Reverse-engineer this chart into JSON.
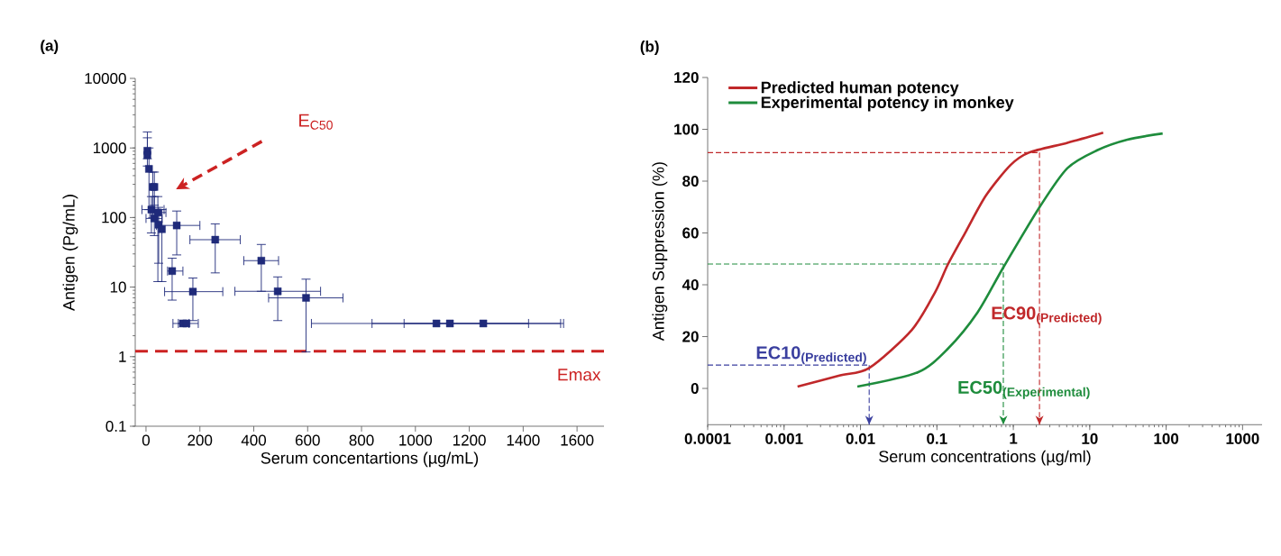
{
  "chart_data": [
    {
      "type": "scatter",
      "title": "(a)",
      "xlabel": "Serum concentartions (µg/mL)",
      "ylabel": "Antigen (Pg/mL)",
      "annotations": [
        "E$_{C50}$"
      ],
      "color": "#1f2a7a",
      "marker": "square",
      "log": "y",
      "x": [
        5,
        5,
        11,
        25,
        31,
        20,
        31,
        44,
        47,
        59,
        114,
        97,
        174,
        137,
        150,
        257,
        428,
        489,
        594,
        1078,
        1128,
        1252
      ],
      "values": [
        910,
        790,
        500,
        275,
        275,
        130,
        97,
        118,
        79,
        68,
        77,
        17,
        8.6,
        3,
        3,
        48,
        24,
        8.7,
        7,
        3,
        3,
        3
      ],
      "errors": [
        [
          700,
          1700
        ],
        [
          550,
          1400
        ],
        [
          130,
          1000
        ],
        [
          100,
          450
        ],
        [
          150,
          450
        ],
        [
          60,
          200
        ],
        [
          55,
          200
        ],
        [
          12,
          200
        ],
        [
          22,
          140
        ],
        [
          12,
          130
        ],
        [
          29,
          124
        ],
        [
          6.5,
          26
        ],
        [
          3.3,
          13.5
        ],
        null,
        null,
        [
          16,
          81
        ],
        [
          8.7,
          41
        ],
        [
          3.3,
          14
        ],
        [
          1.17,
          13
        ],
        null,
        null,
        null
      ],
      "xerrors": [
        null,
        null,
        null,
        null,
        null,
        [
          -15,
          67
        ],
        [
          0,
          60
        ],
        [
          14,
          74
        ],
        null,
        null,
        [
          39,
          200
        ],
        [
          80,
          137
        ],
        [
          69,
          285
        ],
        [
          100,
          160
        ],
        [
          120,
          194
        ],
        [
          163,
          350
        ],
        [
          363,
          492
        ],
        [
          330,
          648
        ],
        [
          455,
          731
        ],
        [
          614,
          1550
        ],
        [
          839,
          1420
        ],
        [
          958,
          1539
        ]
      ],
      "xlim": [
        -40,
        1700
      ],
      "xticks": [
        0,
        200,
        400,
        600,
        800,
        1000,
        1200,
        1400,
        1600
      ],
      "ylim": [
        0.1,
        10000
      ],
      "yticks": [
        0.1,
        1,
        10,
        100,
        1000,
        10000
      ],
      "ref_lines": [
        {
          "axis": "y",
          "value": 1.2,
          "label": "Emax",
          "color": "#cc2222",
          "line_style": "dashed"
        }
      ]
    },
    {
      "type": "line",
      "title": "(b)",
      "xlabel": "Serum concentrations (µg/ml)",
      "ylabel": "Antigen Suppression (%)",
      "log": "x",
      "legend": "top left",
      "series": [
        {
          "name": "Predicted human potency",
          "color": "#c0282a",
          "x": [
            0.0015,
            0.0053,
            0.013,
            0.047,
            0.095,
            0.14,
            0.24,
            0.44,
            0.92,
            1.6,
            5.1,
            15
          ],
          "values": [
            0.7,
            5.0,
            7.9,
            22.6,
            37.2,
            48.0,
            60.6,
            74.5,
            86.2,
            91.0,
            94.8,
            98.7
          ]
        },
        {
          "name": "Experimental potency in monkey",
          "color": "#1e8c3c",
          "x": [
            0.0091,
            0.056,
            0.14,
            0.34,
            0.74,
            2.2,
            5.1,
            12.5,
            31,
            90
          ],
          "values": [
            0.7,
            6.2,
            15.4,
            29.3,
            46.7,
            69.9,
            85.0,
            91.9,
            96.0,
            98.4
          ]
        }
      ],
      "xlim": [
        0.0001,
        1800
      ],
      "xticks": [
        0.0001,
        0.001,
        0.01,
        0.1,
        1,
        10,
        100,
        1000
      ],
      "ylim": [
        -14,
        120
      ],
      "yticks": [
        0,
        20,
        40,
        60,
        80,
        100,
        120
      ],
      "ref_lines": [
        {
          "axis": "x",
          "value": 0.013,
          "label": "\\textbf{EC10}_{\\textbf{(Predicted)}}",
          "color": "#3a3f9f",
          "line_style": "dashed"
        },
        {
          "axis": "y",
          "value": 9,
          "color": "#3a3f9f",
          "line_style": "dashed"
        },
        {
          "axis": "x",
          "value": 0.74,
          "label": "\\textbf{EC50}_{\\textbf{(Experimental)}}",
          "color": "#1e8c3c",
          "line_style": "dashed"
        },
        {
          "axis": "y",
          "value": 48,
          "color": "#1e8c3c",
          "line_style": "dashed"
        },
        {
          "axis": "x",
          "value": 2.2,
          "label": "\\textbf{EC90}_{\\textbf{(Predicted)}}",
          "color": "#c0282a",
          "line_style": "dashed"
        },
        {
          "axis": "y",
          "value": 91,
          "color": "#c0282a",
          "line_style": "dashed"
        }
      ]
    }
  ]
}
